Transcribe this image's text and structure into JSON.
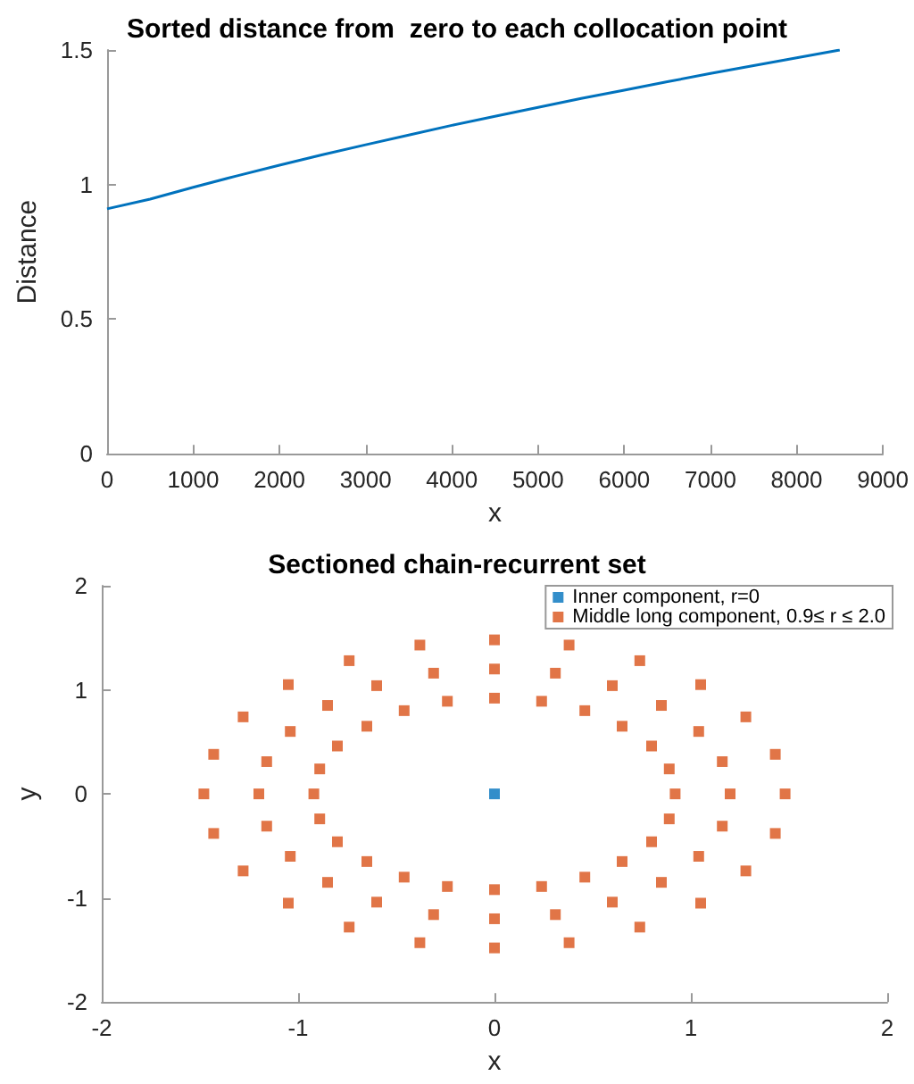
{
  "chart_data": [
    {
      "type": "line",
      "title": "Sorted distance from  zero to each collocation point",
      "xlabel": "x",
      "ylabel": "Distance",
      "xlim": [
        0,
        9000
      ],
      "xticks": [
        0,
        1000,
        2000,
        3000,
        4000,
        5000,
        6000,
        7000,
        8000,
        9000
      ],
      "ylim": [
        0,
        1.5
      ],
      "yticks": [
        0,
        0.5,
        1,
        1.5
      ],
      "series": [
        {
          "color": "#0072bd",
          "x": [
            0,
            500,
            1000,
            1500,
            2000,
            2500,
            3000,
            3500,
            4000,
            4500,
            5000,
            5500,
            6000,
            6500,
            7000,
            7500,
            8000,
            8500
          ],
          "values": [
            0.91,
            0.946,
            0.99,
            1.032,
            1.072,
            1.111,
            1.148,
            1.184,
            1.22,
            1.254,
            1.287,
            1.32,
            1.351,
            1.382,
            1.413,
            1.442,
            1.471,
            1.5
          ]
        }
      ]
    },
    {
      "type": "scatter",
      "title": "Sectioned chain-recurrent set",
      "xlabel": "x",
      "ylabel": "y",
      "xlim": [
        -2,
        2
      ],
      "xticks": [
        -2,
        -1,
        0,
        1,
        2
      ],
      "ylim": [
        -2,
        2
      ],
      "yticks": [
        -2,
        -1,
        0,
        1,
        2
      ],
      "legend": "top right",
      "marker": "square",
      "series": [
        {
          "name": "Inner component, r=0",
          "color": "#0072bd",
          "x": [
            0
          ],
          "values": [
            0
          ]
        },
        {
          "name": "Middle long component, 0.9≤ r ≤ 2.0",
          "color": "#d95319",
          "x": [
            0.92,
            0.89,
            0.8,
            0.65,
            0.46,
            0.24,
            0,
            -0.24,
            -0.46,
            -0.65,
            -0.8,
            -0.89,
            -0.92,
            -0.89,
            -0.8,
            -0.65,
            -0.46,
            -0.24,
            0,
            0.24,
            0.46,
            0.65,
            0.8,
            0.89,
            1.2,
            1.16,
            1.04,
            0.85,
            0.6,
            0.31,
            0,
            -0.31,
            -0.6,
            -0.85,
            -1.04,
            -1.16,
            -1.2,
            -1.16,
            -1.04,
            -0.85,
            -0.6,
            -0.31,
            0,
            0.31,
            0.6,
            0.85,
            1.04,
            1.16,
            1.48,
            1.43,
            1.28,
            1.05,
            0.74,
            0.38,
            0,
            -0.38,
            -0.74,
            -1.05,
            -1.28,
            -1.43,
            -1.48,
            -1.43,
            -1.28,
            -1.05,
            -0.74,
            -0.38,
            0,
            0.38,
            0.74,
            1.05,
            1.28,
            1.43
          ],
          "values": [
            0,
            0.24,
            0.46,
            0.65,
            0.8,
            0.89,
            0.92,
            0.89,
            0.8,
            0.65,
            0.46,
            0.24,
            0,
            -0.24,
            -0.46,
            -0.65,
            -0.8,
            -0.89,
            -0.92,
            -0.89,
            -0.8,
            -0.65,
            -0.46,
            -0.24,
            0,
            0.31,
            0.6,
            0.85,
            1.04,
            1.16,
            1.2,
            1.16,
            1.04,
            0.85,
            0.6,
            0.31,
            0,
            -0.31,
            -0.6,
            -0.85,
            -1.04,
            -1.16,
            -1.2,
            -1.16,
            -1.04,
            -0.85,
            -0.6,
            -0.31,
            0,
            0.38,
            0.74,
            1.05,
            1.28,
            1.43,
            1.48,
            1.43,
            1.28,
            1.05,
            0.74,
            0.38,
            0,
            -0.38,
            -0.74,
            -1.05,
            -1.28,
            -1.43,
            -1.48,
            -1.43,
            -1.28,
            -1.05,
            -0.74,
            -0.38
          ]
        }
      ]
    }
  ]
}
